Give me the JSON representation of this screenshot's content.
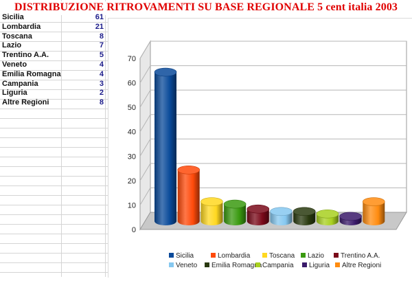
{
  "sheet": {
    "title": "DISTRIBUZIONE RITROVAMENTI SU BASE REGIONALE 5 cent italia 2003"
  },
  "table": {
    "rows": [
      {
        "region": "Sicilia",
        "count": "61"
      },
      {
        "region": "Lombardia",
        "count": "21"
      },
      {
        "region": "Toscana",
        "count": "8"
      },
      {
        "region": "Lazio",
        "count": "7"
      },
      {
        "region": "Trentino A.A.",
        "count": "5"
      },
      {
        "region": "Veneto",
        "count": "4"
      },
      {
        "region": "Emilia Romagna",
        "count": "4"
      },
      {
        "region": "Campania",
        "count": "3"
      },
      {
        "region": "Liguria",
        "count": "2"
      },
      {
        "region": "Altre Regioni",
        "count": "8"
      }
    ]
  },
  "chart_data": {
    "type": "bar",
    "style": "3d-cylinder",
    "title": "",
    "xlabel": "",
    "ylabel": "",
    "ylim": [
      0,
      70
    ],
    "yticks": [
      "0",
      "10",
      "20",
      "30",
      "40",
      "50",
      "60",
      "70"
    ],
    "grid": true,
    "legend_position": "bottom",
    "series": [
      {
        "name": "Sicilia",
        "value": 61,
        "color": "#0a4a9a"
      },
      {
        "name": "Lombardia",
        "value": 21,
        "color": "#ff4a0a"
      },
      {
        "name": "Toscana",
        "value": 8,
        "color": "#ffd820"
      },
      {
        "name": "Lazio",
        "value": 7,
        "color": "#3a9a10"
      },
      {
        "name": "Trentino A.A.",
        "value": 5,
        "color": "#7a0a1a"
      },
      {
        "name": "Veneto",
        "value": 4,
        "color": "#86c8f0"
      },
      {
        "name": "Emilia Romagna",
        "value": 4,
        "color": "#2a3a10"
      },
      {
        "name": "Campania",
        "value": 3,
        "color": "#a8d020"
      },
      {
        "name": "Liguria",
        "value": 2,
        "color": "#3a1a6a"
      },
      {
        "name": "Altre Regioni",
        "value": 8,
        "color": "#ff8c10"
      }
    ]
  }
}
